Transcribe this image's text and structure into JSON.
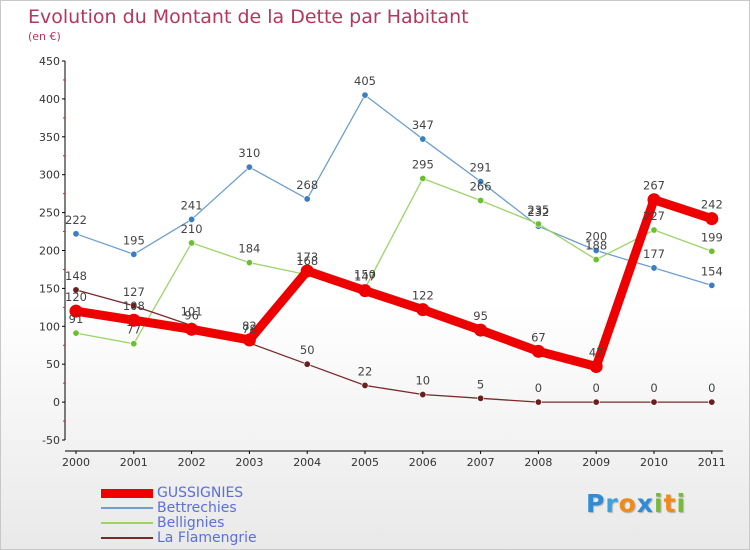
{
  "logo": {
    "text": "Proxiti",
    "letters": [
      "P",
      "r",
      "o",
      "x",
      "i",
      "t",
      "i"
    ],
    "colors": [
      "#2e8bd8",
      "#3aa0e0",
      "#f08a1a",
      "#2e8bd8",
      "#79b83a",
      "#f08a1a",
      "#79b83a"
    ]
  },
  "chart_data": {
    "type": "line",
    "title": "Evolution du Montant de la Dette par Habitant",
    "subtitle": "(en €)",
    "xlabel": "",
    "ylabel": "",
    "categories": [
      "2000",
      "2001",
      "2002",
      "2003",
      "2004",
      "2005",
      "2006",
      "2007",
      "2008",
      "2009",
      "2010",
      "2011"
    ],
    "ylim": [
      -50,
      450
    ],
    "yticks": [
      -50,
      0,
      50,
      100,
      150,
      200,
      250,
      300,
      350,
      400,
      450
    ],
    "yticklabels": [
      "-50",
      "0",
      "50",
      "100",
      "150",
      "200",
      "250",
      "300",
      "350",
      "400",
      "450"
    ],
    "grid": false,
    "legend_position": "bottom-left",
    "series": [
      {
        "name": "Bettrechies",
        "color": "#6e9fd0",
        "marker": "#3a7fc2",
        "values": [
          222,
          195,
          241,
          310,
          268,
          405,
          347,
          291,
          232,
          200,
          177,
          154
        ]
      },
      {
        "name": "Bellignies",
        "color": "#9ed36a",
        "marker": "#6cc030",
        "values": [
          91,
          77,
          210,
          184,
          168,
          150,
          295,
          266,
          235,
          188,
          227,
          199
        ]
      },
      {
        "name": "La Flamengrie",
        "color": "#7a2a2a",
        "marker": "#6a1f1f",
        "values": [
          148,
          127,
          101,
          78,
          50,
          22,
          10,
          5,
          0,
          0,
          0,
          0
        ]
      },
      {
        "name": "GUSSIGNIES",
        "color": "#ee0000",
        "marker": "#ee0000",
        "values": [
          120,
          108,
          96,
          82,
          173,
          147,
          122,
          95,
          67,
          47,
          267,
          242
        ]
      }
    ],
    "legend_order": [
      "GUSSIGNIES",
      "Bettrechies",
      "Bellignies",
      "La Flamengrie"
    ]
  }
}
